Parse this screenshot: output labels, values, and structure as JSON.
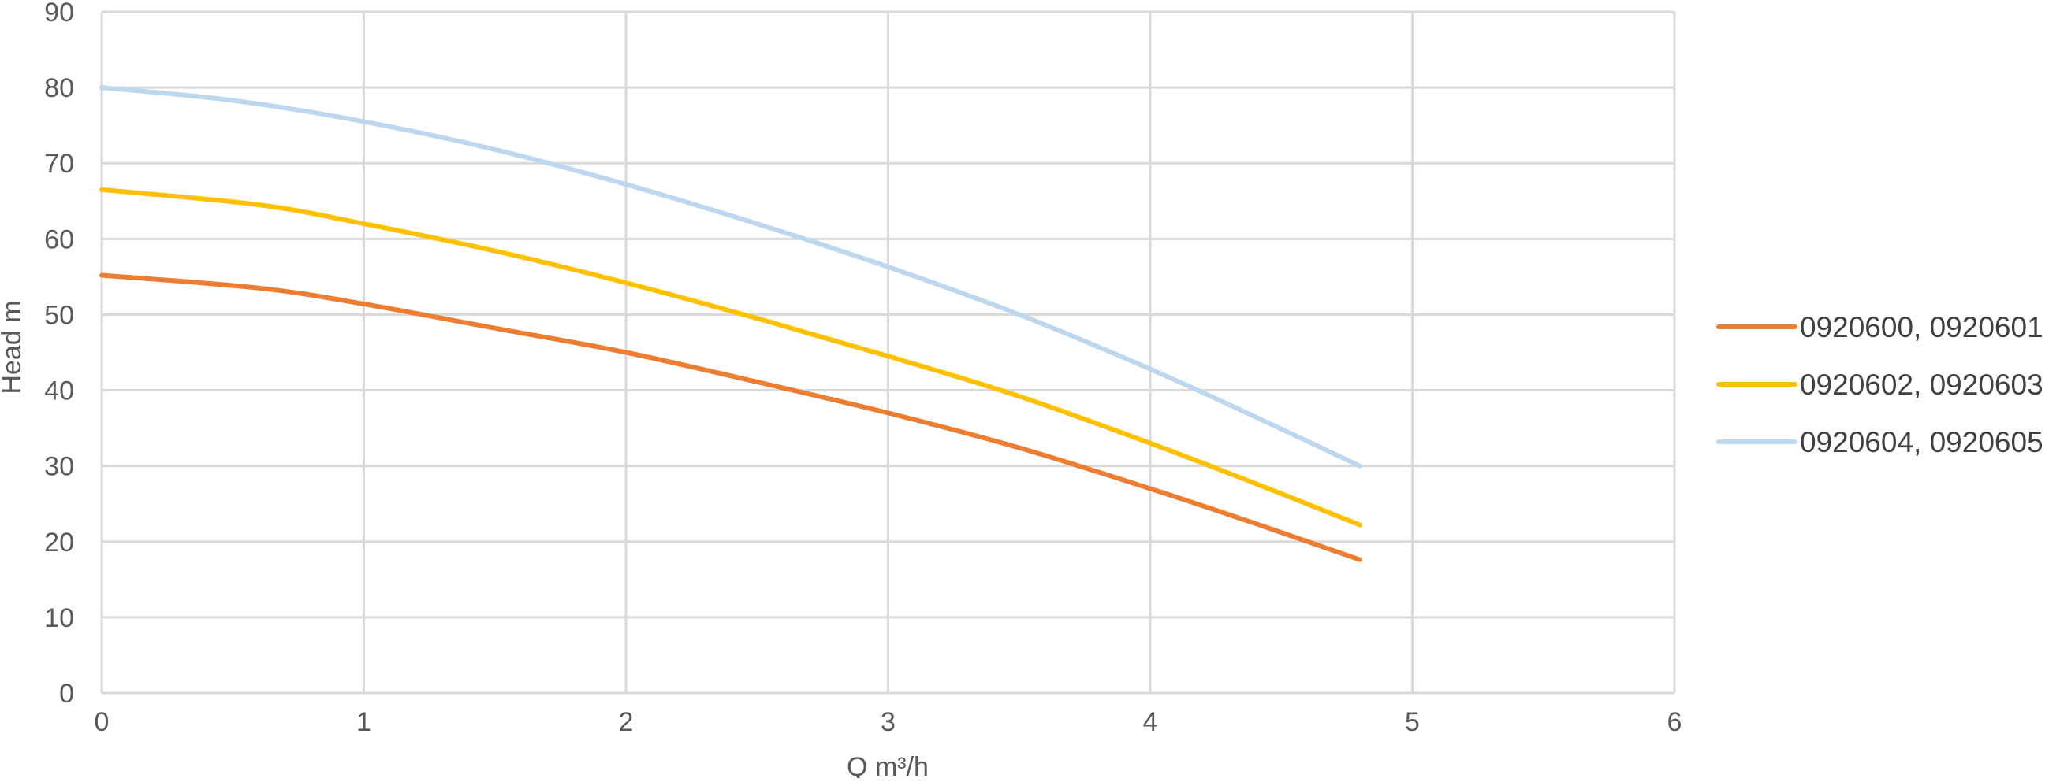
{
  "chart_data": {
    "type": "line",
    "title": "",
    "xlabel": "Q m³/h",
    "ylabel": "Head m",
    "xlim": [
      0,
      6
    ],
    "ylim": [
      0,
      90
    ],
    "x_ticks": [
      0,
      1,
      2,
      3,
      4,
      5,
      6
    ],
    "y_ticks": [
      0,
      10,
      20,
      30,
      40,
      50,
      60,
      70,
      80,
      90
    ],
    "grid": true,
    "legend_position": "right",
    "series": [
      {
        "name": "0920600, 0920601",
        "color": "#ed7d31",
        "x": [
          0,
          0.6,
          1,
          1.5,
          2,
          2.5,
          3,
          3.5,
          4,
          4.4,
          4.8
        ],
        "y": [
          55.2,
          53.5,
          51.4,
          48.2,
          45,
          41.1,
          37,
          32.4,
          27,
          22.4,
          17.6
        ]
      },
      {
        "name": "0920602, 0920603",
        "color": "#ffc000",
        "x": [
          0,
          0.6,
          1,
          1.5,
          2,
          2.5,
          3,
          3.5,
          4,
          4.4,
          4.8
        ],
        "y": [
          66.5,
          64.5,
          62,
          58.4,
          54.2,
          49.5,
          44.5,
          39.2,
          33,
          27.7,
          22.2
        ]
      },
      {
        "name": "0920604, 0920605",
        "color": "#bdd7ee",
        "x": [
          0,
          0.5,
          1,
          1.5,
          2,
          2.5,
          3,
          3.5,
          4,
          4.4,
          4.8
        ],
        "y": [
          80,
          78.3,
          75.5,
          71.8,
          67.2,
          62,
          56.3,
          50,
          42.8,
          36.5,
          30
        ]
      }
    ]
  }
}
